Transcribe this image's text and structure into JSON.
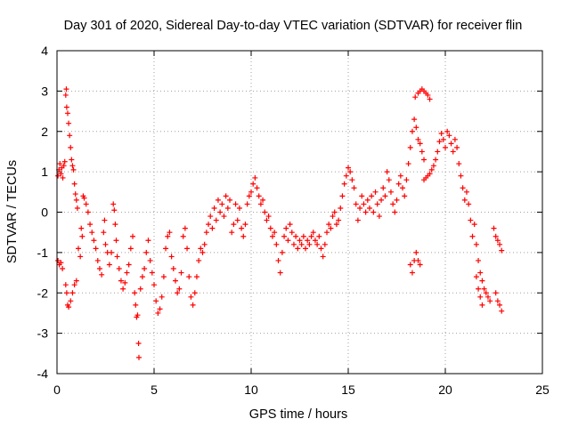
{
  "chart_data": {
    "type": "scatter",
    "title": "Day 301 of 2020, Sidereal Day-to-day VTEC variation (SDTVAR) for receiver flin",
    "xlabel": "GPS time / hours",
    "ylabel": "SDTVAR / TECUs",
    "xlim": [
      0,
      25
    ],
    "ylim": [
      -4,
      4
    ],
    "xticks": [
      "0",
      "5",
      "10",
      "15",
      "20",
      "25"
    ],
    "yticks": [
      "-4",
      "-3",
      "-2",
      "-1",
      "0",
      "1",
      "2",
      "3",
      "4"
    ],
    "grid": true,
    "marker": "+",
    "color": "#ff0000",
    "series": [
      {
        "name": "SDTVAR",
        "points": [
          [
            0.05,
            0.9
          ],
          [
            0.1,
            1.05
          ],
          [
            0.15,
            1.2
          ],
          [
            0.2,
            0.95
          ],
          [
            0.25,
            1.1
          ],
          [
            0.3,
            0.85
          ],
          [
            0.05,
            -1.2
          ],
          [
            0.12,
            -1.3
          ],
          [
            0.2,
            -1.25
          ],
          [
            0.28,
            -1.4
          ],
          [
            0.35,
            1.15
          ],
          [
            0.4,
            1.25
          ],
          [
            0.45,
            2.9
          ],
          [
            0.48,
            3.05
          ],
          [
            0.5,
            2.6
          ],
          [
            0.55,
            2.45
          ],
          [
            0.6,
            2.2
          ],
          [
            0.65,
            1.9
          ],
          [
            0.7,
            1.6
          ],
          [
            0.75,
            1.3
          ],
          [
            0.8,
            1.15
          ],
          [
            0.85,
            1.05
          ],
          [
            0.9,
            0.7
          ],
          [
            0.95,
            0.45
          ],
          [
            1.0,
            0.3
          ],
          [
            1.05,
            0.1
          ],
          [
            0.45,
            -1.8
          ],
          [
            0.5,
            -2.0
          ],
          [
            0.55,
            -2.3
          ],
          [
            0.6,
            -2.35
          ],
          [
            0.7,
            -2.2
          ],
          [
            0.8,
            -2.0
          ],
          [
            0.9,
            -1.8
          ],
          [
            1.0,
            -1.7
          ],
          [
            1.1,
            -0.9
          ],
          [
            1.2,
            -1.1
          ],
          [
            1.25,
            -0.4
          ],
          [
            1.3,
            -0.6
          ],
          [
            1.35,
            0.4
          ],
          [
            1.4,
            0.35
          ],
          [
            1.5,
            0.2
          ],
          [
            1.6,
            0.0
          ],
          [
            1.7,
            -0.3
          ],
          [
            1.8,
            -0.5
          ],
          [
            1.9,
            -0.7
          ],
          [
            2.0,
            -0.9
          ],
          [
            2.1,
            -1.2
          ],
          [
            2.2,
            -1.4
          ],
          [
            2.3,
            -1.55
          ],
          [
            2.4,
            -0.5
          ],
          [
            2.45,
            -0.2
          ],
          [
            2.5,
            -0.8
          ],
          [
            2.6,
            -1.0
          ],
          [
            2.7,
            -1.3
          ],
          [
            2.8,
            -1.0
          ],
          [
            2.9,
            0.2
          ],
          [
            2.95,
            0.05
          ],
          [
            3.0,
            -0.3
          ],
          [
            3.05,
            -0.7
          ],
          [
            3.1,
            -1.1
          ],
          [
            3.2,
            -1.4
          ],
          [
            3.3,
            -1.7
          ],
          [
            3.4,
            -1.9
          ],
          [
            3.5,
            -1.75
          ],
          [
            3.6,
            -1.5
          ],
          [
            3.7,
            -1.3
          ],
          [
            3.8,
            -0.9
          ],
          [
            3.9,
            -0.6
          ],
          [
            4.0,
            -2.0
          ],
          [
            4.05,
            -2.3
          ],
          [
            4.1,
            -2.6
          ],
          [
            4.15,
            -2.55
          ],
          [
            4.2,
            -3.25
          ],
          [
            4.22,
            -3.6
          ],
          [
            4.3,
            -1.9
          ],
          [
            4.4,
            -1.6
          ],
          [
            4.5,
            -1.4
          ],
          [
            4.6,
            -1.0
          ],
          [
            4.7,
            -0.7
          ],
          [
            4.8,
            -1.2
          ],
          [
            4.9,
            -1.5
          ],
          [
            5.0,
            -1.8
          ],
          [
            5.1,
            -2.2
          ],
          [
            5.2,
            -2.5
          ],
          [
            5.3,
            -2.4
          ],
          [
            5.4,
            -2.1
          ],
          [
            5.5,
            -1.6
          ],
          [
            5.6,
            -0.9
          ],
          [
            5.7,
            -0.6
          ],
          [
            5.8,
            -0.5
          ],
          [
            5.9,
            -1.1
          ],
          [
            6.0,
            -1.4
          ],
          [
            6.1,
            -1.7
          ],
          [
            6.2,
            -2.0
          ],
          [
            6.3,
            -1.9
          ],
          [
            6.4,
            -1.5
          ],
          [
            6.5,
            -0.6
          ],
          [
            6.6,
            -0.4
          ],
          [
            6.7,
            -0.9
          ],
          [
            6.8,
            -1.6
          ],
          [
            6.9,
            -2.1
          ],
          [
            7.0,
            -2.3
          ],
          [
            7.1,
            -2.0
          ],
          [
            7.2,
            -1.6
          ],
          [
            7.3,
            -1.2
          ],
          [
            7.4,
            -0.9
          ],
          [
            7.5,
            -1.0
          ],
          [
            7.6,
            -0.8
          ],
          [
            7.7,
            -0.5
          ],
          [
            7.8,
            -0.3
          ],
          [
            7.9,
            -0.1
          ],
          [
            8.0,
            -0.4
          ],
          [
            8.1,
            0.1
          ],
          [
            8.2,
            -0.2
          ],
          [
            8.3,
            0.3
          ],
          [
            8.4,
            0.0
          ],
          [
            8.5,
            0.2
          ],
          [
            8.6,
            -0.1
          ],
          [
            8.7,
            0.4
          ],
          [
            8.8,
            0.1
          ],
          [
            8.9,
            0.3
          ],
          [
            9.0,
            -0.5
          ],
          [
            9.1,
            -0.3
          ],
          [
            9.2,
            0.2
          ],
          [
            9.3,
            -0.2
          ],
          [
            9.4,
            0.1
          ],
          [
            9.5,
            -0.4
          ],
          [
            9.6,
            -0.6
          ],
          [
            9.7,
            -0.3
          ],
          [
            9.8,
            0.2
          ],
          [
            9.9,
            0.4
          ],
          [
            10.0,
            0.5
          ],
          [
            10.1,
            0.7
          ],
          [
            10.2,
            0.85
          ],
          [
            10.3,
            0.6
          ],
          [
            10.4,
            0.4
          ],
          [
            10.5,
            0.2
          ],
          [
            10.6,
            0.3
          ],
          [
            10.7,
            0.0
          ],
          [
            10.8,
            -0.2
          ],
          [
            10.9,
            -0.1
          ],
          [
            11.0,
            -0.4
          ],
          [
            11.1,
            -0.6
          ],
          [
            11.2,
            -0.5
          ],
          [
            11.3,
            -0.8
          ],
          [
            11.4,
            -1.2
          ],
          [
            11.5,
            -1.5
          ],
          [
            11.6,
            -1.0
          ],
          [
            11.7,
            -0.6
          ],
          [
            11.8,
            -0.4
          ],
          [
            11.9,
            -0.7
          ],
          [
            12.0,
            -0.3
          ],
          [
            12.1,
            -0.5
          ],
          [
            12.2,
            -0.8
          ],
          [
            12.3,
            -0.6
          ],
          [
            12.4,
            -0.9
          ],
          [
            12.5,
            -0.7
          ],
          [
            12.6,
            -0.8
          ],
          [
            12.7,
            -0.6
          ],
          [
            12.8,
            -0.9
          ],
          [
            12.9,
            -0.7
          ],
          [
            13.0,
            -0.8
          ],
          [
            13.1,
            -0.6
          ],
          [
            13.2,
            -0.5
          ],
          [
            13.3,
            -0.7
          ],
          [
            13.4,
            -0.8
          ],
          [
            13.5,
            -0.6
          ],
          [
            13.6,
            -0.9
          ],
          [
            13.7,
            -1.1
          ],
          [
            13.8,
            -0.8
          ],
          [
            13.9,
            -0.5
          ],
          [
            14.0,
            -0.3
          ],
          [
            14.1,
            -0.4
          ],
          [
            14.2,
            -0.1
          ],
          [
            14.3,
            0.0
          ],
          [
            14.4,
            -0.3
          ],
          [
            14.5,
            -0.2
          ],
          [
            14.6,
            0.1
          ],
          [
            14.7,
            0.4
          ],
          [
            14.8,
            0.7
          ],
          [
            14.9,
            0.9
          ],
          [
            15.0,
            1.1
          ],
          [
            15.1,
            1.0
          ],
          [
            15.2,
            0.8
          ],
          [
            15.3,
            0.6
          ],
          [
            15.4,
            0.2
          ],
          [
            15.5,
            -0.2
          ],
          [
            15.6,
            0.1
          ],
          [
            15.7,
            0.4
          ],
          [
            15.8,
            0.2
          ],
          [
            15.9,
            0.0
          ],
          [
            16.0,
            0.3
          ],
          [
            16.1,
            0.1
          ],
          [
            16.2,
            0.4
          ],
          [
            16.3,
            0.0
          ],
          [
            16.4,
            0.5
          ],
          [
            16.5,
            0.2
          ],
          [
            16.6,
            -0.1
          ],
          [
            16.7,
            0.3
          ],
          [
            16.8,
            0.6
          ],
          [
            16.9,
            0.4
          ],
          [
            17.0,
            1.0
          ],
          [
            17.1,
            0.8
          ],
          [
            17.2,
            0.5
          ],
          [
            17.3,
            0.2
          ],
          [
            17.4,
            0.0
          ],
          [
            17.5,
            0.3
          ],
          [
            17.6,
            0.7
          ],
          [
            17.7,
            0.9
          ],
          [
            17.8,
            0.6
          ],
          [
            17.9,
            0.4
          ],
          [
            18.0,
            0.8
          ],
          [
            18.1,
            1.2
          ],
          [
            18.2,
            1.6
          ],
          [
            18.3,
            2.0
          ],
          [
            18.4,
            2.3
          ],
          [
            18.5,
            2.1
          ],
          [
            18.6,
            1.8
          ],
          [
            18.7,
            1.7
          ],
          [
            18.8,
            1.5
          ],
          [
            18.9,
            1.3
          ],
          [
            18.2,
            -1.3
          ],
          [
            18.3,
            -1.5
          ],
          [
            18.4,
            -1.2
          ],
          [
            18.5,
            -1.0
          ],
          [
            18.6,
            -1.2
          ],
          [
            18.7,
            -1.3
          ],
          [
            18.45,
            2.85
          ],
          [
            18.6,
            2.95
          ],
          [
            18.7,
            3.0
          ],
          [
            18.8,
            3.05
          ],
          [
            18.9,
            3.0
          ],
          [
            19.0,
            2.95
          ],
          [
            19.1,
            2.9
          ],
          [
            19.2,
            2.8
          ],
          [
            18.9,
            0.8
          ],
          [
            19.0,
            0.85
          ],
          [
            19.1,
            0.9
          ],
          [
            19.2,
            0.95
          ],
          [
            19.3,
            1.05
          ],
          [
            19.4,
            1.15
          ],
          [
            19.5,
            1.3
          ],
          [
            19.6,
            1.5
          ],
          [
            19.7,
            1.75
          ],
          [
            19.8,
            1.95
          ],
          [
            19.9,
            1.8
          ],
          [
            20.0,
            1.6
          ],
          [
            20.1,
            2.0
          ],
          [
            20.2,
            1.9
          ],
          [
            20.3,
            1.7
          ],
          [
            20.4,
            1.5
          ],
          [
            20.5,
            1.8
          ],
          [
            20.6,
            1.6
          ],
          [
            20.7,
            1.2
          ],
          [
            20.8,
            0.9
          ],
          [
            20.9,
            0.6
          ],
          [
            21.0,
            0.3
          ],
          [
            21.1,
            0.5
          ],
          [
            21.2,
            0.2
          ],
          [
            21.3,
            -0.2
          ],
          [
            21.4,
            -0.6
          ],
          [
            21.5,
            -0.3
          ],
          [
            21.6,
            -0.8
          ],
          [
            21.7,
            -1.2
          ],
          [
            21.8,
            -1.5
          ],
          [
            21.9,
            -1.7
          ],
          [
            22.0,
            -1.9
          ],
          [
            22.1,
            -2.0
          ],
          [
            22.2,
            -2.1
          ],
          [
            22.3,
            -2.2
          ],
          [
            21.6,
            -1.6
          ],
          [
            21.7,
            -1.9
          ],
          [
            21.8,
            -2.1
          ],
          [
            21.9,
            -2.3
          ],
          [
            22.5,
            -0.4
          ],
          [
            22.6,
            -0.6
          ],
          [
            22.7,
            -0.7
          ],
          [
            22.8,
            -0.8
          ],
          [
            22.9,
            -0.95
          ],
          [
            22.6,
            -2.0
          ],
          [
            22.7,
            -2.2
          ],
          [
            22.8,
            -2.3
          ],
          [
            22.9,
            -2.45
          ]
        ]
      }
    ]
  }
}
